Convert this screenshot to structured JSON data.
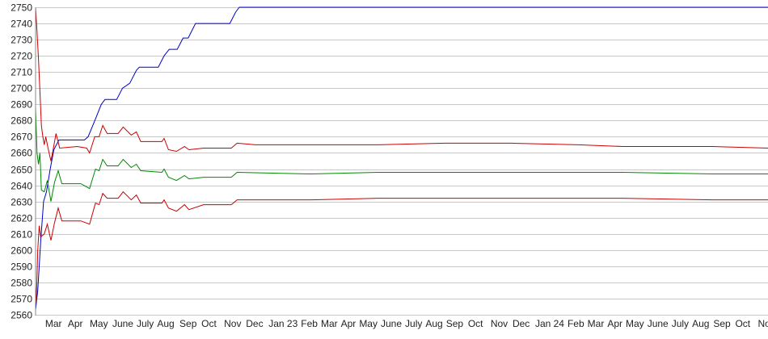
{
  "chart_data": {
    "type": "line",
    "title": "",
    "xlabel": "",
    "ylabel": "",
    "ylim": [
      2560,
      2750
    ],
    "yticks": [
      2560,
      2570,
      2580,
      2590,
      2600,
      2610,
      2620,
      2630,
      2640,
      2650,
      2660,
      2670,
      2680,
      2690,
      2700,
      2710,
      2720,
      2730,
      2740,
      2750
    ],
    "xlim": [
      "2022-02-17",
      "2024-11-16"
    ],
    "grid": "horizontal",
    "legend": "none",
    "xticks": [
      {
        "label": "Mar",
        "date": "2022-03-01"
      },
      {
        "label": "Apr",
        "date": "2022-04-01"
      },
      {
        "label": "May",
        "date": "2022-05-01"
      },
      {
        "label": "June",
        "date": "2022-06-01"
      },
      {
        "label": "July",
        "date": "2022-07-01"
      },
      {
        "label": "Aug",
        "date": "2022-08-01"
      },
      {
        "label": "Sep",
        "date": "2022-09-01"
      },
      {
        "label": "Oct",
        "date": "2022-10-01"
      },
      {
        "label": "Nov",
        "date": "2022-11-01"
      },
      {
        "label": "Dec",
        "date": "2022-12-01"
      },
      {
        "label": "Jan 23",
        "date": "2023-01-01"
      },
      {
        "label": "Feb",
        "date": "2023-02-01"
      },
      {
        "label": "Mar",
        "date": "2023-03-01"
      },
      {
        "label": "Apr",
        "date": "2023-04-01"
      },
      {
        "label": "May",
        "date": "2023-05-01"
      },
      {
        "label": "June",
        "date": "2023-06-01"
      },
      {
        "label": "July",
        "date": "2023-07-01"
      },
      {
        "label": "Aug",
        "date": "2023-08-01"
      },
      {
        "label": "Sep",
        "date": "2023-09-01"
      },
      {
        "label": "Oct",
        "date": "2023-10-01"
      },
      {
        "label": "Nov",
        "date": "2023-11-01"
      },
      {
        "label": "Dec",
        "date": "2023-12-01"
      },
      {
        "label": "Jan 24",
        "date": "2024-01-01"
      },
      {
        "label": "Feb",
        "date": "2024-02-01"
      },
      {
        "label": "Mar",
        "date": "2024-03-01"
      },
      {
        "label": "Apr",
        "date": "2024-04-01"
      },
      {
        "label": "May",
        "date": "2024-05-01"
      },
      {
        "label": "June",
        "date": "2024-06-01"
      },
      {
        "label": "July",
        "date": "2024-07-01"
      },
      {
        "label": "Aug",
        "date": "2024-08-01"
      },
      {
        "label": "Sep",
        "date": "2024-09-01"
      },
      {
        "label": "Oct",
        "date": "2024-10-01"
      },
      {
        "label": "No",
        "date": "2024-11-01"
      }
    ],
    "series": [
      {
        "color": "#0000cc",
        "points": [
          [
            "2022-02-17",
            2563
          ],
          [
            "2022-02-20",
            2575
          ],
          [
            "2022-02-24",
            2605
          ],
          [
            "2022-02-28",
            2630
          ],
          [
            "2022-03-04",
            2636
          ],
          [
            "2022-03-09",
            2650
          ],
          [
            "2022-03-14",
            2662
          ],
          [
            "2022-03-21",
            2668
          ],
          [
            "2022-04-25",
            2668
          ],
          [
            "2022-04-30",
            2670
          ],
          [
            "2022-05-10",
            2681
          ],
          [
            "2022-05-18",
            2690
          ],
          [
            "2022-05-23",
            2693
          ],
          [
            "2022-06-08",
            2693
          ],
          [
            "2022-06-16",
            2700
          ],
          [
            "2022-06-26",
            2703
          ],
          [
            "2022-07-05",
            2711
          ],
          [
            "2022-07-09",
            2713
          ],
          [
            "2022-08-04",
            2713
          ],
          [
            "2022-08-12",
            2720
          ],
          [
            "2022-08-19",
            2724
          ],
          [
            "2022-08-30",
            2724
          ],
          [
            "2022-09-07",
            2731
          ],
          [
            "2022-09-14",
            2731
          ],
          [
            "2022-09-24",
            2740
          ],
          [
            "2022-11-10",
            2740
          ],
          [
            "2022-11-18",
            2747
          ],
          [
            "2022-11-23",
            2750
          ],
          [
            "2024-11-16",
            2750
          ]
        ]
      },
      {
        "color": "#cc0000",
        "points": [
          [
            "2022-02-17",
            2750
          ],
          [
            "2022-02-19",
            2735
          ],
          [
            "2022-02-21",
            2718
          ],
          [
            "2022-02-23",
            2698
          ],
          [
            "2022-02-25",
            2677
          ],
          [
            "2022-02-27",
            2670
          ],
          [
            "2022-03-01",
            2665
          ],
          [
            "2022-03-03",
            2670
          ],
          [
            "2022-03-06",
            2663
          ],
          [
            "2022-03-10",
            2655
          ],
          [
            "2022-03-13",
            2662
          ],
          [
            "2022-03-17",
            2672
          ],
          [
            "2022-03-22",
            2663
          ],
          [
            "2022-04-15",
            2664
          ],
          [
            "2022-04-28",
            2663
          ],
          [
            "2022-05-02",
            2660
          ],
          [
            "2022-05-09",
            2670
          ],
          [
            "2022-05-15",
            2670
          ],
          [
            "2022-05-20",
            2677
          ],
          [
            "2022-05-26",
            2672
          ],
          [
            "2022-06-10",
            2672
          ],
          [
            "2022-06-17",
            2676
          ],
          [
            "2022-06-28",
            2671
          ],
          [
            "2022-07-05",
            2673
          ],
          [
            "2022-07-11",
            2667
          ],
          [
            "2022-08-09",
            2667
          ],
          [
            "2022-08-12",
            2669
          ],
          [
            "2022-08-18",
            2662
          ],
          [
            "2022-08-29",
            2661
          ],
          [
            "2022-09-09",
            2664
          ],
          [
            "2022-09-15",
            2662
          ],
          [
            "2022-10-05",
            2663
          ],
          [
            "2022-11-12",
            2663
          ],
          [
            "2022-11-20",
            2666
          ],
          [
            "2022-12-15",
            2665
          ],
          [
            "2023-03-01",
            2665
          ],
          [
            "2023-06-01",
            2665
          ],
          [
            "2023-09-01",
            2666
          ],
          [
            "2023-12-01",
            2666
          ],
          [
            "2024-03-01",
            2665
          ],
          [
            "2024-05-01",
            2664
          ],
          [
            "2024-09-01",
            2664
          ],
          [
            "2024-11-16",
            2663
          ]
        ]
      },
      {
        "color": "#008800",
        "points": [
          [
            "2022-02-17",
            2688
          ],
          [
            "2022-02-19",
            2660
          ],
          [
            "2022-02-21",
            2653
          ],
          [
            "2022-02-23",
            2660
          ],
          [
            "2022-02-25",
            2637
          ],
          [
            "2022-03-01",
            2636
          ],
          [
            "2022-03-05",
            2643
          ],
          [
            "2022-03-10",
            2630
          ],
          [
            "2022-03-15",
            2642
          ],
          [
            "2022-03-20",
            2649
          ],
          [
            "2022-03-25",
            2641
          ],
          [
            "2022-04-20",
            2641
          ],
          [
            "2022-05-02",
            2638
          ],
          [
            "2022-05-10",
            2650
          ],
          [
            "2022-05-15",
            2649
          ],
          [
            "2022-05-20",
            2656
          ],
          [
            "2022-05-26",
            2652
          ],
          [
            "2022-06-10",
            2652
          ],
          [
            "2022-06-17",
            2656
          ],
          [
            "2022-06-28",
            2651
          ],
          [
            "2022-07-05",
            2653
          ],
          [
            "2022-07-11",
            2649
          ],
          [
            "2022-08-09",
            2648
          ],
          [
            "2022-08-12",
            2650
          ],
          [
            "2022-08-18",
            2645
          ],
          [
            "2022-08-29",
            2643
          ],
          [
            "2022-09-09",
            2646
          ],
          [
            "2022-09-15",
            2644
          ],
          [
            "2022-10-05",
            2645
          ],
          [
            "2022-11-12",
            2645
          ],
          [
            "2022-11-20",
            2648
          ],
          [
            "2023-03-01",
            2647
          ],
          [
            "2023-06-01",
            2648
          ],
          [
            "2023-12-01",
            2648
          ],
          [
            "2024-05-01",
            2648
          ],
          [
            "2024-09-01",
            2647
          ],
          [
            "2024-11-16",
            2647
          ]
        ]
      },
      {
        "color": "#cc0000",
        "points": [
          [
            "2022-02-17",
            2578
          ],
          [
            "2022-02-18",
            2568
          ],
          [
            "2022-02-20",
            2600
          ],
          [
            "2022-02-22",
            2615
          ],
          [
            "2022-02-24",
            2608
          ],
          [
            "2022-03-01",
            2610
          ],
          [
            "2022-03-05",
            2616
          ],
          [
            "2022-03-10",
            2606
          ],
          [
            "2022-03-15",
            2617
          ],
          [
            "2022-03-20",
            2626
          ],
          [
            "2022-03-25",
            2618
          ],
          [
            "2022-04-20",
            2618
          ],
          [
            "2022-05-02",
            2616
          ],
          [
            "2022-05-10",
            2629
          ],
          [
            "2022-05-15",
            2628
          ],
          [
            "2022-05-20",
            2635
          ],
          [
            "2022-05-26",
            2632
          ],
          [
            "2022-06-10",
            2632
          ],
          [
            "2022-06-17",
            2636
          ],
          [
            "2022-06-28",
            2631
          ],
          [
            "2022-07-05",
            2634
          ],
          [
            "2022-07-11",
            2629
          ],
          [
            "2022-08-09",
            2629
          ],
          [
            "2022-08-12",
            2631
          ],
          [
            "2022-08-18",
            2626
          ],
          [
            "2022-08-29",
            2624
          ],
          [
            "2022-09-09",
            2628
          ],
          [
            "2022-09-15",
            2625
          ],
          [
            "2022-10-05",
            2628
          ],
          [
            "2022-11-12",
            2628
          ],
          [
            "2022-11-20",
            2631
          ],
          [
            "2023-03-01",
            2631
          ],
          [
            "2023-06-01",
            2632
          ],
          [
            "2023-12-01",
            2632
          ],
          [
            "2024-05-01",
            2632
          ],
          [
            "2024-09-01",
            2631
          ],
          [
            "2024-11-16",
            2631
          ]
        ]
      }
    ]
  }
}
